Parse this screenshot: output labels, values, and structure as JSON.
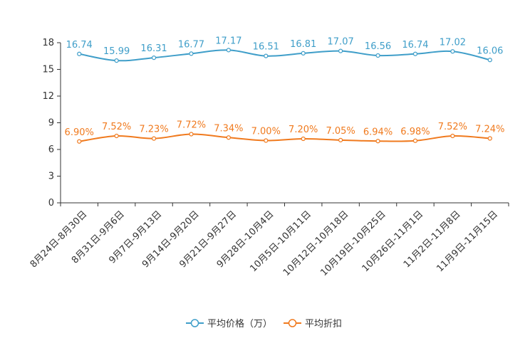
{
  "chart_data": {
    "type": "line",
    "title": "",
    "xlabel": "",
    "ylabel": "",
    "ylim": [
      0,
      18
    ],
    "yticks": [
      0,
      3,
      6,
      9,
      12,
      15,
      18
    ],
    "categories": [
      "8月24日-8月30日",
      "8月31日-9月6日",
      "9月7日-9月13日",
      "9月14日-9月20日",
      "9月21日-9月27日",
      "9月28日-10月4日",
      "10月5日-10月11日",
      "10月12日-10月18日",
      "10月19日-10月25日",
      "10月26日-11月1日",
      "11月2日-11月8日",
      "11月9日-11月15日"
    ],
    "series": [
      {
        "name": "平均价格（万）",
        "color": "#3f9ec9",
        "values": [
          16.74,
          15.99,
          16.31,
          16.77,
          17.17,
          16.51,
          16.81,
          17.07,
          16.56,
          16.74,
          17.02,
          16.06
        ],
        "labels": [
          "16.74",
          "15.99",
          "16.31",
          "16.77",
          "17.17",
          "16.51",
          "16.81",
          "17.07",
          "16.56",
          "16.74",
          "17.02",
          "16.06"
        ]
      },
      {
        "name": "平均折扣",
        "color": "#f07a1e",
        "values": [
          6.9,
          7.52,
          7.23,
          7.72,
          7.34,
          7.0,
          7.2,
          7.05,
          6.94,
          6.98,
          7.52,
          7.24
        ],
        "labels": [
          "6.90%",
          "7.52%",
          "7.23%",
          "7.72%",
          "7.34%",
          "7.00%",
          "7.20%",
          "7.05%",
          "6.94%",
          "6.98%",
          "7.52%",
          "7.24%"
        ]
      }
    ],
    "legend_position": "bottom-center",
    "grid": false
  }
}
